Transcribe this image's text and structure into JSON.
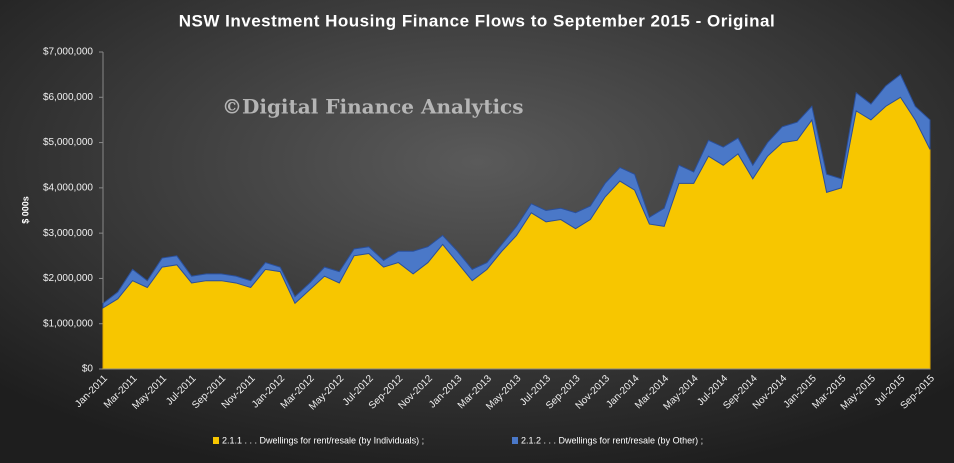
{
  "chart_data": {
    "type": "stacked_area",
    "title": "NSW Investment Housing Finance Flows to September 2015 - Original",
    "annotation": "©Digital Finance Analytics",
    "y_label": "$ 000s",
    "categories": [
      "Jan-2011",
      null,
      "Mar-2011",
      null,
      "May-2011",
      null,
      "Jul-2011",
      null,
      "Sep-2011",
      null,
      "Nov-2011",
      null,
      "Jan-2012",
      null,
      "Mar-2012",
      null,
      "May-2012",
      null,
      "Jul-2012",
      null,
      "Sep-2012",
      null,
      "Nov-2012",
      null,
      "Jan-2013",
      null,
      "Mar-2013",
      null,
      "May-2013",
      null,
      "Jul-2013",
      null,
      "Sep-2013",
      null,
      "Nov-2013",
      null,
      "Jan-2014",
      null,
      "Mar-2014",
      null,
      "May-2014",
      null,
      "Jul-2014",
      null,
      "Sep-2014",
      null,
      "Nov-2014",
      null,
      "Jan-2015",
      null,
      "Mar-2015",
      null,
      "May-2015",
      null,
      "Jul-2015",
      null,
      "Sep-2015"
    ],
    "series": [
      {
        "name": "2.1.1 . . . Dwellings for rent/resale (by Individuals) ;",
        "color": "#f7c600",
        "values": [
          1350000,
          1550000,
          1950000,
          1800000,
          2250000,
          2300000,
          1900000,
          1950000,
          1950000,
          1900000,
          1800000,
          2200000,
          2150000,
          1450000,
          1750000,
          2050000,
          1900000,
          2500000,
          2550000,
          2250000,
          2350000,
          2100000,
          2350000,
          2750000,
          2350000,
          1950000,
          2200000,
          2600000,
          2950000,
          3450000,
          3250000,
          3300000,
          3100000,
          3300000,
          3800000,
          4150000,
          3950000,
          3200000,
          3150000,
          4100000,
          4100000,
          4700000,
          4500000,
          4750000,
          4200000,
          4700000,
          5000000,
          5050000,
          5500000,
          3900000,
          4000000,
          5700000,
          5500000,
          5800000,
          6000000,
          5500000,
          4850000
        ]
      },
      {
        "name": "2.1.2 . . . Dwellings for rent/resale (by Other) ;",
        "color": "#4a78c8",
        "values": [
          100000,
          150000,
          250000,
          150000,
          200000,
          200000,
          150000,
          150000,
          150000,
          150000,
          150000,
          150000,
          100000,
          150000,
          150000,
          200000,
          250000,
          150000,
          150000,
          150000,
          250000,
          500000,
          350000,
          200000,
          250000,
          250000,
          150000,
          150000,
          200000,
          200000,
          250000,
          250000,
          350000,
          300000,
          300000,
          300000,
          350000,
          150000,
          400000,
          400000,
          250000,
          350000,
          400000,
          350000,
          300000,
          300000,
          350000,
          400000,
          300000,
          400000,
          200000,
          400000,
          350000,
          450000,
          500000,
          300000,
          650000
        ]
      }
    ],
    "ylim": [
      0,
      7000000
    ],
    "yticks": [
      {
        "value": 0,
        "label": "$0"
      },
      {
        "value": 1000000,
        "label": "$1,000,000"
      },
      {
        "value": 2000000,
        "label": "$2,000,000"
      },
      {
        "value": 3000000,
        "label": "$3,000,000"
      },
      {
        "value": 4000000,
        "label": "$4,000,000"
      },
      {
        "value": 5000000,
        "label": "$5,000,000"
      },
      {
        "value": 6000000,
        "label": "$6,000,000"
      },
      {
        "value": 7000000,
        "label": "$7,000,000"
      }
    ],
    "legend_position": "bottom"
  }
}
